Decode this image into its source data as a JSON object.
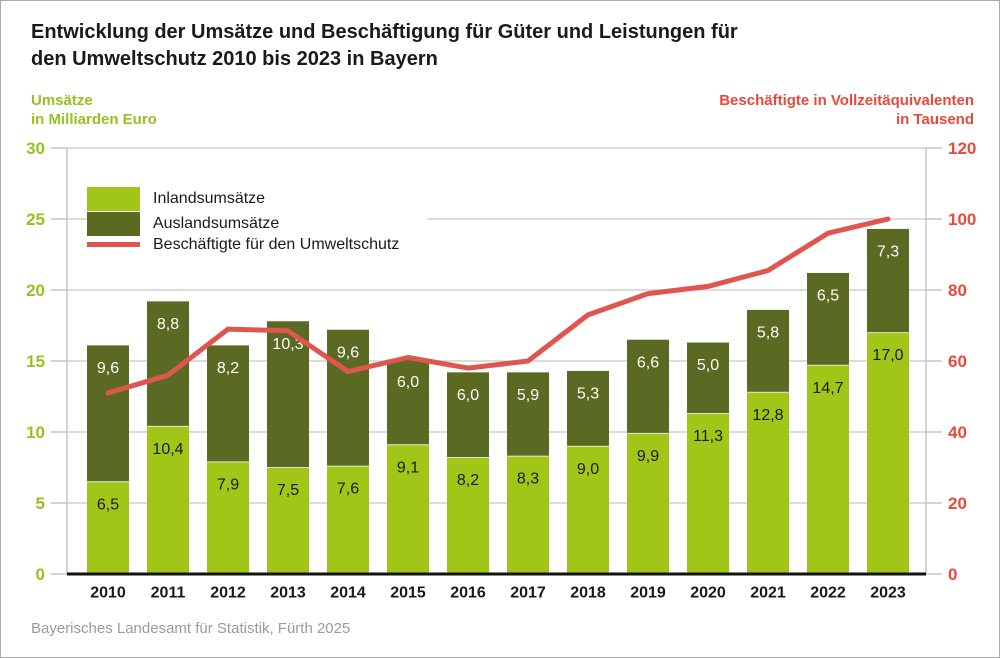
{
  "header": {
    "title_line1": "Entwicklung der Umsätze und Beschäftigung für Güter und Leistungen für",
    "title_line2": "den Umweltschutz 2010 bis 2023 in Bayern"
  },
  "left_axis_label": {
    "line1": "Umsätze",
    "line2": "in Milliarden Euro"
  },
  "right_axis_label": {
    "line1": "Beschäftigte in Vollzeitäquivalenten",
    "line2": "in Tausend"
  },
  "footer": {
    "text": "Bayerisches Landesamt für Statistik, Fürth 2025"
  },
  "colors": {
    "light_green": "#a2c618",
    "dark_green": "#5a6a22",
    "red_line": "#e0554d",
    "red_text": "#e8493c",
    "green_text": "#97c11f",
    "gridline": "#c8c8c8",
    "axis_gray": "#bdbdbd",
    "baseline_black": "#111111",
    "label_black": "#1a1a1a",
    "label_white": "#ffffff",
    "footer_gray": "#9b9b9b"
  },
  "chart_data": {
    "type": "bar",
    "subtype": "stacked-bars-with-line-overlay",
    "categories": [
      "2010",
      "2011",
      "2012",
      "2013",
      "2014",
      "2015",
      "2016",
      "2017",
      "2018",
      "2019",
      "2020",
      "2021",
      "2022",
      "2023"
    ],
    "series": [
      {
        "name": "Inlandsumsätze",
        "type": "bar",
        "stack": "umsaetze",
        "axis": "left",
        "values": [
          6.5,
          10.4,
          7.9,
          7.5,
          7.6,
          9.1,
          8.2,
          8.3,
          9.0,
          9.9,
          11.3,
          12.8,
          14.7,
          17.0
        ]
      },
      {
        "name": "Auslandsumsätze",
        "type": "bar",
        "stack": "umsaetze",
        "axis": "left",
        "values": [
          9.6,
          8.8,
          8.2,
          10.3,
          9.6,
          6.0,
          6.0,
          5.9,
          5.3,
          6.6,
          5.0,
          5.8,
          6.5,
          7.3
        ]
      },
      {
        "name": "Beschäftigte für den Umweltschutz",
        "type": "line",
        "axis": "right",
        "values": [
          51,
          56,
          69,
          68.5,
          57,
          61,
          58,
          60,
          73,
          79,
          81,
          85.5,
          96,
          100
        ]
      }
    ],
    "left_axis": {
      "min": 0,
      "max": 30,
      "step": 5,
      "title": "Umsätze in Milliarden Euro"
    },
    "right_axis": {
      "min": 0,
      "max": 120,
      "step": 20,
      "title": "Beschäftigte in Vollzeitäquivalenten in Tausend"
    },
    "grid": true,
    "legend_position": "top-left-inside",
    "value_label_decimal_separator": ",",
    "title": "Entwicklung der Umsätze und Beschäftigung für Güter und Leistungen für den Umweltschutz 2010 bis 2023 in Bayern",
    "source": "Bayerisches Landesamt für Statistik, Fürth 2025"
  }
}
